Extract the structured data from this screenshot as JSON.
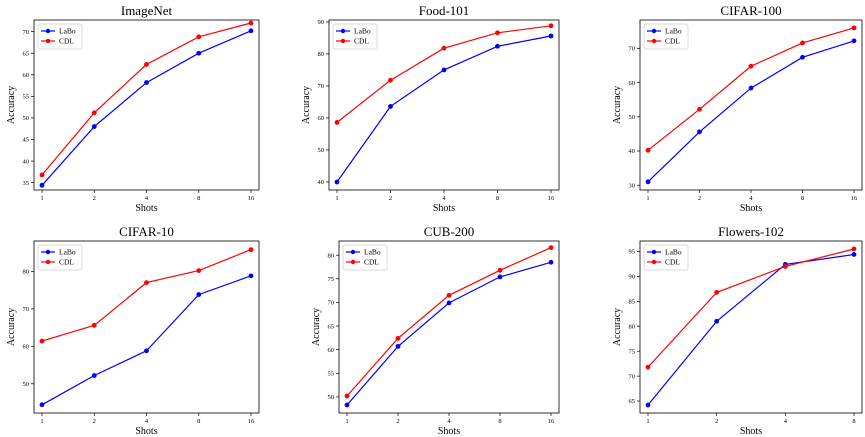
{
  "chart_data": [
    {
      "type": "line",
      "title": "ImageNet",
      "xlabel": "Shots",
      "ylabel": "Accuracy",
      "categories": [
        "1",
        "2",
        "4",
        "8",
        "16"
      ],
      "ylim": [
        33.3,
        72.7
      ],
      "yticks": [
        35,
        40,
        45,
        50,
        55,
        60,
        65,
        70
      ],
      "legend": "top-left",
      "grid": false,
      "series": [
        {
          "name": "LaBo",
          "color": "#0000ff",
          "values": [
            34.4,
            48.0,
            58.2,
            65.0,
            70.2
          ]
        },
        {
          "name": "CDL",
          "color": "#ff0000",
          "values": [
            36.8,
            51.2,
            62.4,
            68.8,
            72.0
          ]
        }
      ]
    },
    {
      "type": "line",
      "title": "Food-101",
      "xlabel": "Shots",
      "ylabel": "Accuracy",
      "categories": [
        "1",
        "2",
        "4",
        "8",
        "16"
      ],
      "ylim": [
        37.5,
        90.6
      ],
      "yticks": [
        40,
        50,
        60,
        70,
        80,
        90
      ],
      "legend": "top-left",
      "grid": false,
      "series": [
        {
          "name": "LaBo",
          "color": "#0000ff",
          "values": [
            40.0,
            63.6,
            75.0,
            82.4,
            85.6
          ]
        },
        {
          "name": "CDL",
          "color": "#ff0000",
          "values": [
            58.6,
            71.8,
            81.8,
            86.6,
            88.8
          ]
        }
      ]
    },
    {
      "type": "line",
      "title": "CIFAR-100",
      "xlabel": "Shots",
      "ylabel": "Accuracy",
      "categories": [
        "1",
        "2",
        "4",
        "8",
        "16"
      ],
      "ylim": [
        28.6,
        78.3
      ],
      "yticks": [
        30,
        40,
        50,
        60,
        70
      ],
      "legend": "top-left",
      "grid": false,
      "series": [
        {
          "name": "LaBo",
          "color": "#0000ff",
          "values": [
            31.0,
            45.6,
            58.4,
            67.4,
            72.2
          ]
        },
        {
          "name": "CDL",
          "color": "#ff0000",
          "values": [
            40.2,
            52.2,
            64.8,
            71.6,
            76.0
          ]
        }
      ]
    },
    {
      "type": "line",
      "title": "CIFAR-10",
      "xlabel": "Shots",
      "ylabel": "Accuracy",
      "categories": [
        "1",
        "2",
        "4",
        "8",
        "16"
      ],
      "ylim": [
        42.2,
        88.1
      ],
      "yticks": [
        50,
        60,
        70,
        80
      ],
      "legend": "top-left",
      "grid": false,
      "series": [
        {
          "name": "LaBo",
          "color": "#0000ff",
          "values": [
            44.4,
            52.2,
            58.8,
            73.8,
            78.8
          ]
        },
        {
          "name": "CDL",
          "color": "#ff0000",
          "values": [
            61.4,
            65.6,
            77.0,
            80.2,
            85.8
          ]
        }
      ]
    },
    {
      "type": "line",
      "title": "CUB-200",
      "xlabel": "Shots",
      "ylabel": "Accuracy",
      "categories": [
        "1",
        "2",
        "4",
        "8",
        "16"
      ],
      "ylim": [
        46.6,
        83.0
      ],
      "yticks": [
        50,
        55,
        60,
        65,
        70,
        75,
        80
      ],
      "legend": "top-left",
      "grid": false,
      "series": [
        {
          "name": "LaBo",
          "color": "#0000ff",
          "values": [
            48.3,
            60.7,
            69.9,
            75.4,
            78.5
          ]
        },
        {
          "name": "CDL",
          "color": "#ff0000",
          "values": [
            50.2,
            62.4,
            71.5,
            76.8,
            81.6
          ]
        }
      ]
    },
    {
      "type": "line",
      "title": "Flowers-102",
      "xlabel": "Shots",
      "ylabel": "Accuracy",
      "categories": [
        "1",
        "2",
        "4",
        "8"
      ],
      "ylim": [
        62.6,
        97.1
      ],
      "yticks": [
        65,
        70,
        75,
        80,
        85,
        90,
        95
      ],
      "legend": "top-left",
      "grid": false,
      "series": [
        {
          "name": "LaBo",
          "color": "#0000ff",
          "values": [
            64.2,
            81.0,
            92.4,
            94.4
          ]
        },
        {
          "name": "CDL",
          "color": "#ff0000",
          "values": [
            71.8,
            86.8,
            92.0,
            95.5
          ]
        }
      ]
    }
  ]
}
